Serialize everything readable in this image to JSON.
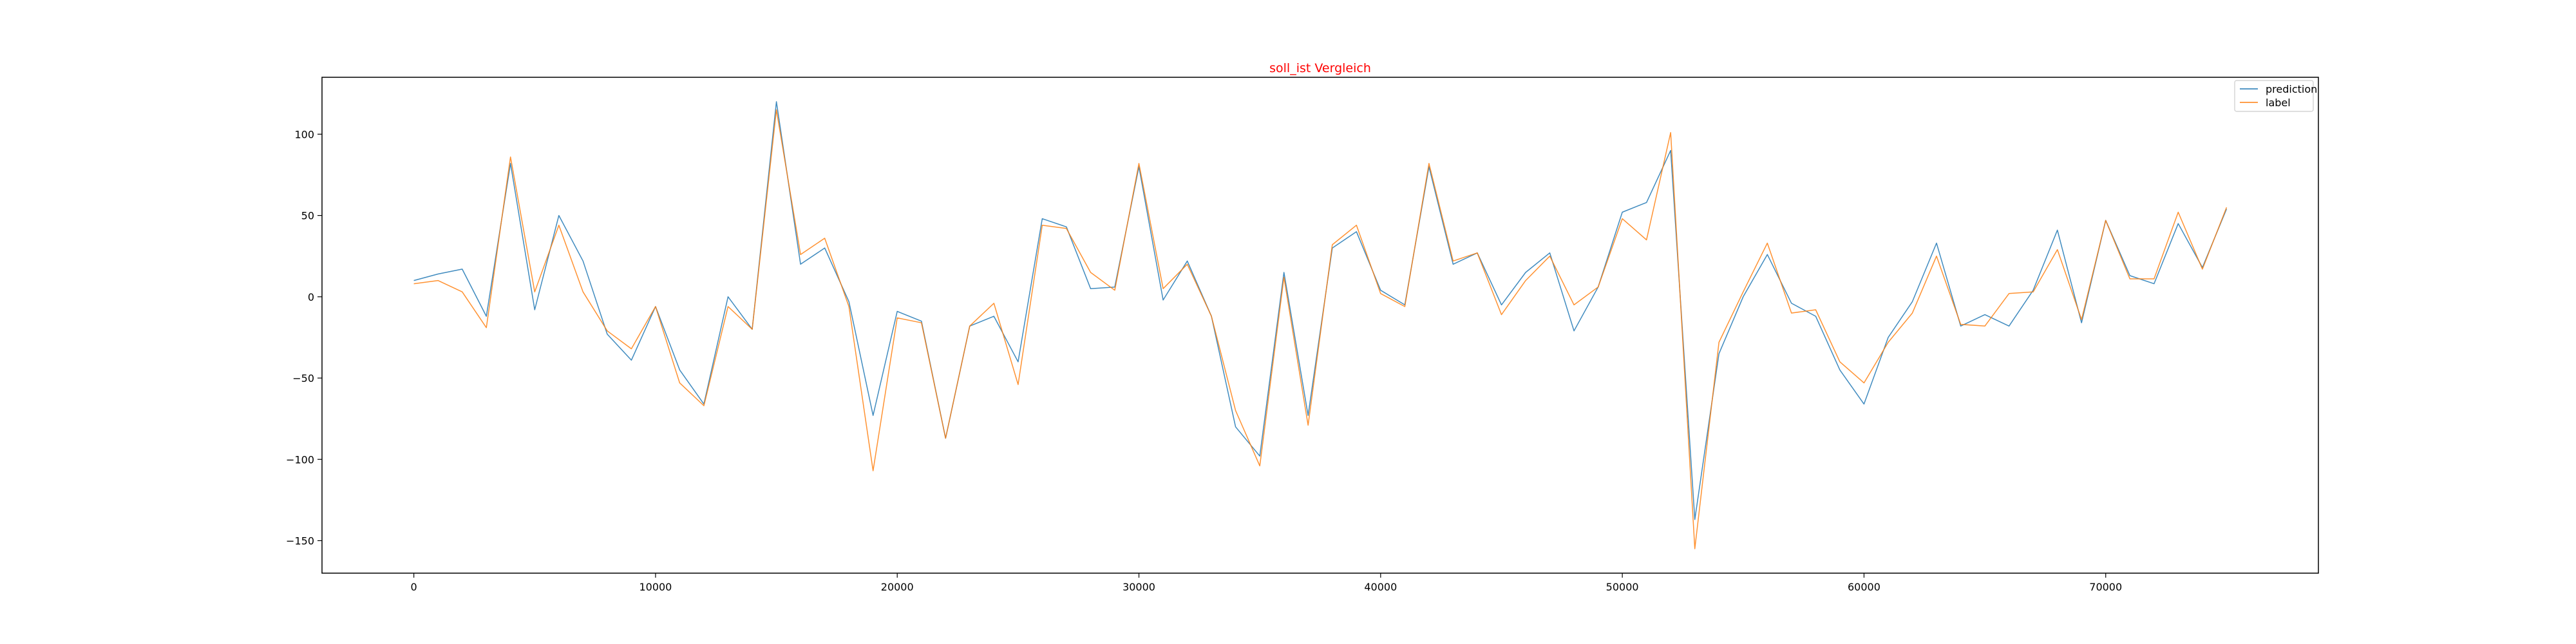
{
  "chart_data": {
    "type": "line",
    "title": "soll_ist Vergleich",
    "title_color": "#ff0000",
    "xlabel": "",
    "ylabel": "",
    "xlim": [
      -3800,
      78800
    ],
    "ylim": [
      -170,
      135
    ],
    "xticks": [
      0,
      10000,
      20000,
      30000,
      40000,
      50000,
      60000,
      70000
    ],
    "yticks": [
      -150,
      -100,
      -50,
      0,
      50,
      100
    ],
    "grid": false,
    "legend_position": "top-right",
    "x": [
      0,
      1000,
      2000,
      3000,
      4000,
      5000,
      6000,
      7000,
      8000,
      9000,
      10000,
      11000,
      12000,
      13000,
      14000,
      15000,
      16000,
      17000,
      18000,
      19000,
      20000,
      21000,
      22000,
      23000,
      24000,
      25000,
      26000,
      27000,
      28000,
      29000,
      30000,
      31000,
      32000,
      33000,
      34000,
      35000,
      36000,
      37000,
      38000,
      39000,
      40000,
      41000,
      42000,
      43000,
      44000,
      45000,
      46000,
      47000,
      48000,
      49000,
      50000,
      51000,
      52000,
      53000,
      54000,
      55000,
      56000,
      57000,
      58000,
      59000,
      60000,
      61000,
      62000,
      63000,
      64000,
      65000,
      66000,
      67000,
      68000,
      69000,
      70000,
      71000,
      72000,
      73000,
      74000,
      75000
    ],
    "series": [
      {
        "name": "prediction",
        "color": "#1f77b4",
        "values": [
          10,
          14,
          17,
          -12,
          82,
          -8,
          50,
          22,
          -23,
          -39,
          -6,
          -45,
          -66,
          0,
          -20,
          120,
          20,
          30,
          -3,
          -73,
          -9,
          -15,
          -87,
          -18,
          -12,
          -40,
          48,
          43,
          5,
          6,
          80,
          -2,
          22,
          -12,
          -80,
          -98,
          15,
          -73,
          30,
          40,
          4,
          -5,
          80,
          20,
          27,
          -5,
          15,
          27,
          -21,
          6,
          52,
          58,
          90,
          -137,
          -35,
          0,
          26,
          -4,
          -12,
          -45,
          -66,
          -25,
          -3,
          33,
          -18,
          -11,
          -18,
          4,
          41,
          -16,
          47,
          13,
          8,
          45,
          18,
          54
        ]
      },
      {
        "name": "label",
        "color": "#ff7f0e",
        "values": [
          8,
          10,
          3,
          -19,
          86,
          3,
          44,
          3,
          -21,
          -32,
          -6,
          -53,
          -67,
          -6,
          -20,
          115,
          26,
          36,
          -6,
          -107,
          -13,
          -16,
          -87,
          -18,
          -4,
          -54,
          44,
          42,
          15,
          4,
          82,
          5,
          20,
          -12,
          -70,
          -104,
          12,
          -79,
          32,
          44,
          2,
          -6,
          82,
          22,
          27,
          -11,
          10,
          25,
          -5,
          6,
          48,
          35,
          101,
          -155,
          -28,
          3,
          33,
          -10,
          -8,
          -40,
          -53,
          -28,
          -10,
          25,
          -17,
          -18,
          2,
          3,
          29,
          -14,
          47,
          11,
          11,
          52,
          17,
          55
        ]
      }
    ]
  }
}
